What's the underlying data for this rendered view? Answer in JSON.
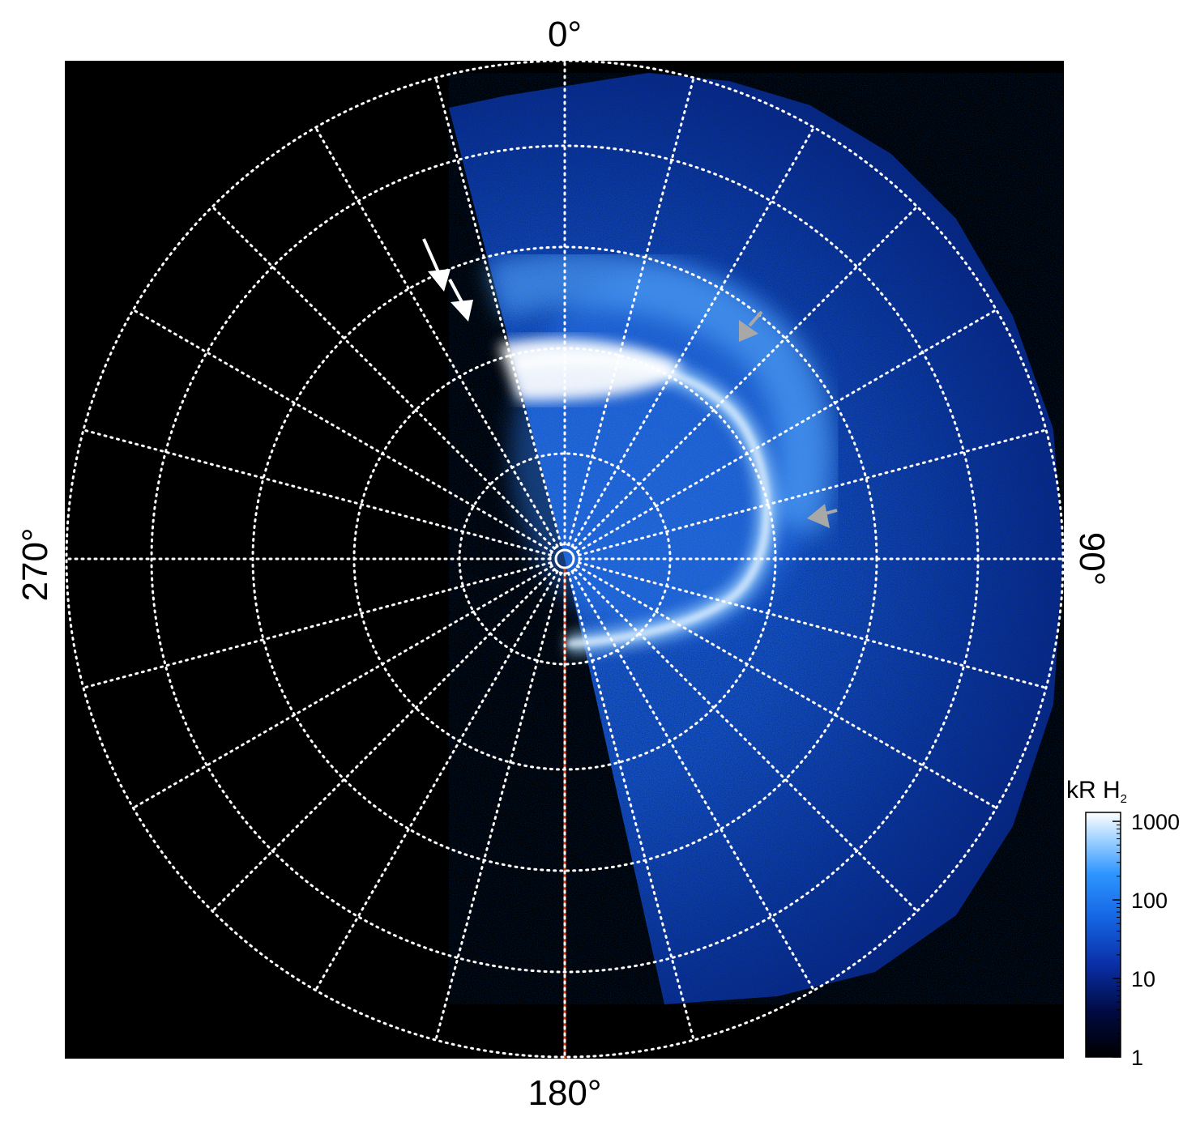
{
  "figure": {
    "direction_labels": {
      "top": "0°",
      "right": "90°",
      "bottom": "180°",
      "left": "270°"
    },
    "colorbar": {
      "unit_prefix": "kR H",
      "unit_subscript": "2",
      "ticks": [
        {
          "label": "1000",
          "value": 1000
        },
        {
          "label": "100",
          "value": 100
        },
        {
          "label": "10",
          "value": 10
        },
        {
          "label": "1",
          "value": 1
        }
      ]
    },
    "colors": {
      "background": "#000000",
      "grid": "#ffffff",
      "meridian_line": "#d63a12",
      "white_arrow": "#ffffff",
      "grey_arrow": "#a8a8a8",
      "emission_dim": "#0a2a9a",
      "emission_mid": "#1e74f0",
      "emission_bright": "#ffffff"
    }
  }
}
